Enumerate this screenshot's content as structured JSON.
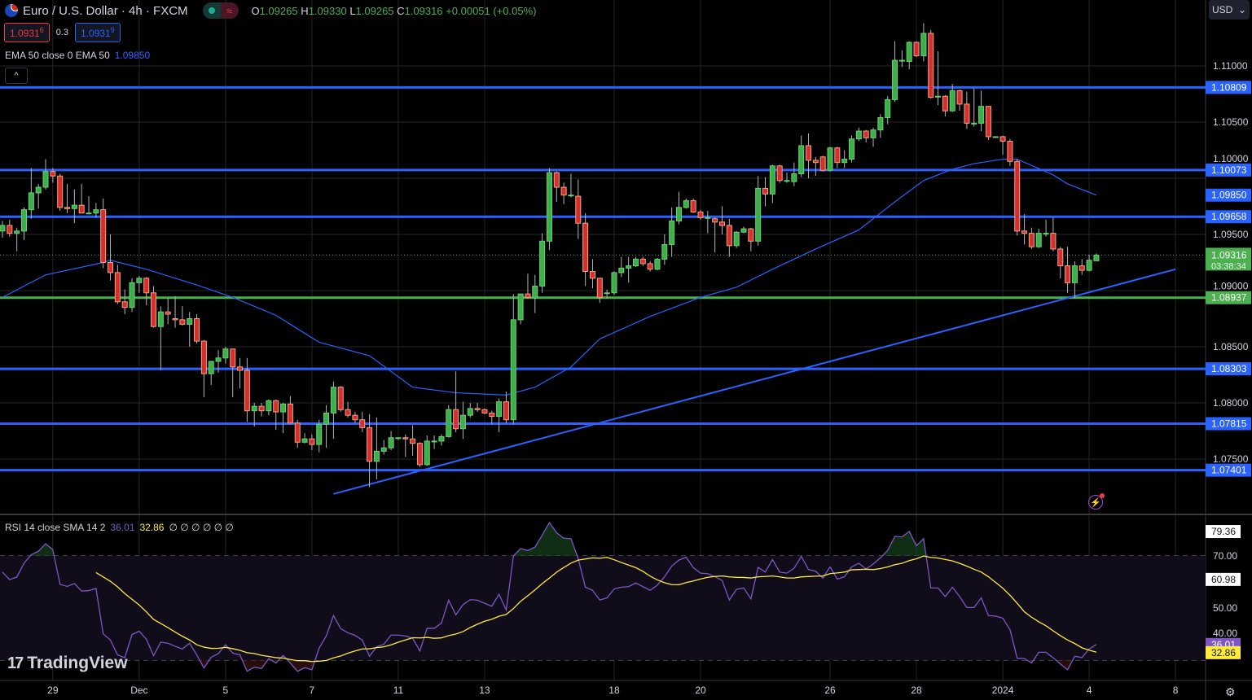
{
  "header": {
    "symbol_title": "Euro / U.S. Dollar · 4h · FXCM",
    "ohlc": {
      "o_label": "O",
      "o": "1.09265",
      "h_label": "H",
      "h": "1.09330",
      "l_label": "L",
      "l": "1.09265",
      "c_label": "C",
      "c": "1.09316",
      "change": "+0.00051 (+0.05%)"
    },
    "market_status_icon": "green-dot-icon",
    "delayed_icon": "approx-icon",
    "approx_symbol": "≈",
    "sell_price_main": "1.0931",
    "sell_price_pip": "6",
    "spread": "0.3",
    "buy_price_main": "1.0931",
    "buy_price_pip": "9",
    "collapse_symbol": "^"
  },
  "ema_legend": {
    "label": "EMA 50 close 0 EMA 50",
    "value": "1.09850"
  },
  "rsi_legend": {
    "label": "RSI 14 close SMA 14 2",
    "rsi": "36.01",
    "sma": "32.86",
    "empties": "∅ ∅ ∅ ∅ ∅ ∅"
  },
  "currency_button": {
    "label": "USD"
  },
  "watermark": "TradingView",
  "colors": {
    "up": "#4caf50",
    "down": "#d32f2f",
    "level": "#2962ff",
    "support": "#4caf50",
    "ema": "#2962ff",
    "rsi": "#7e57c2",
    "rsi_sma": "#ffeb3b"
  },
  "chart_data": {
    "type": "candlestick",
    "timeframe": "4h",
    "price_axis": {
      "ticks": [
        "1.11000",
        "1.10500",
        "1.10000",
        "1.09500",
        "1.09000",
        "1.08500",
        "1.08000",
        "1.07500"
      ]
    },
    "time_axis": [
      {
        "label": "29",
        "index": 7
      },
      {
        "label": "Dec",
        "index": 19
      },
      {
        "label": "5",
        "index": 31
      },
      {
        "label": "7",
        "index": 43
      },
      {
        "label": "11",
        "index": 55
      },
      {
        "label": "13",
        "index": 67
      },
      {
        "label": "18",
        "index": 85
      },
      {
        "label": "20",
        "index": 97
      },
      {
        "label": "26",
        "index": 115
      },
      {
        "label": "28",
        "index": 127
      },
      {
        "label": "2024",
        "index": 139
      },
      {
        "label": "4",
        "index": 151
      },
      {
        "label": "8",
        "index": 163
      }
    ],
    "candles": [
      [
        1.0953,
        1.0962,
        1.0947,
        1.0958
      ],
      [
        1.0958,
        1.0963,
        1.0948,
        1.0951
      ],
      [
        1.0951,
        1.0956,
        1.0935,
        1.0953
      ],
      [
        1.0953,
        1.0974,
        1.0945,
        1.0972
      ],
      [
        1.0972,
        1.1009,
        1.0964,
        1.0987
      ],
      [
        1.0987,
        1.0995,
        1.0973,
        1.0992
      ],
      [
        1.0992,
        1.1017,
        1.099,
        1.1006
      ],
      [
        1.1006,
        1.1009,
        1.0996,
        1.1002
      ],
      [
        1.1002,
        1.1004,
        1.0971,
        1.0974
      ],
      [
        1.0974,
        1.0995,
        1.0969,
        1.0973
      ],
      [
        1.0973,
        1.099,
        1.096,
        1.0976
      ],
      [
        1.0976,
        1.0995,
        1.0969,
        1.0969
      ],
      [
        1.0969,
        1.0984,
        1.0969,
        1.0969
      ],
      [
        1.0969,
        1.0978,
        1.0965,
        1.0972
      ],
      [
        1.0972,
        1.0982,
        1.092,
        1.0925
      ],
      [
        1.0925,
        1.095,
        1.0909,
        1.0916
      ],
      [
        1.0916,
        1.0923,
        1.0888,
        1.089
      ],
      [
        1.089,
        1.0901,
        1.0879,
        1.0885
      ],
      [
        1.0885,
        1.0911,
        1.0881,
        1.0907
      ],
      [
        1.0907,
        1.0913,
        1.0898,
        1.0911
      ],
      [
        1.0911,
        1.0912,
        1.0887,
        1.0898
      ],
      [
        1.0898,
        1.0904,
        1.0867,
        1.0868
      ],
      [
        1.0868,
        1.0886,
        1.0829,
        1.0881
      ],
      [
        1.0881,
        1.0893,
        1.087,
        1.0879
      ],
      [
        1.0875,
        1.0895,
        1.0867,
        1.0874
      ],
      [
        1.0874,
        1.0886,
        1.0869,
        1.087
      ],
      [
        1.087,
        1.0881,
        1.085,
        1.0875
      ],
      [
        1.0875,
        1.0879,
        1.0853,
        1.0855
      ],
      [
        1.0855,
        1.0856,
        1.0805,
        1.0826
      ],
      [
        1.0826,
        1.0837,
        1.0816,
        1.0837
      ],
      [
        1.0837,
        1.0847,
        1.0827,
        1.084
      ],
      [
        1.084,
        1.085,
        1.0835,
        1.0848
      ],
      [
        1.0848,
        1.0848,
        1.0805,
        1.0832
      ],
      [
        1.0832,
        1.084,
        1.0813,
        1.0829
      ],
      [
        1.0829,
        1.084,
        1.0783,
        1.0793
      ],
      [
        1.0793,
        1.08,
        1.0779,
        1.0797
      ],
      [
        1.0797,
        1.08,
        1.0788,
        1.0793
      ],
      [
        1.0793,
        1.0803,
        1.0789,
        1.0802
      ],
      [
        1.0802,
        1.0803,
        1.0776,
        1.0792
      ],
      [
        1.0792,
        1.08,
        1.0773,
        1.0799
      ],
      [
        1.0799,
        1.0806,
        1.0782,
        1.0782
      ],
      [
        1.0782,
        1.0785,
        1.076,
        1.0765
      ],
      [
        1.0765,
        1.0773,
        1.0764,
        1.0768
      ],
      [
        1.0768,
        1.0772,
        1.0758,
        1.0763
      ],
      [
        1.0763,
        1.0785,
        1.0756,
        1.0781
      ],
      [
        1.0781,
        1.0798,
        1.076,
        1.0791
      ],
      [
        1.0791,
        1.0819,
        1.0768,
        1.0814
      ],
      [
        1.0814,
        1.0815,
        1.0792,
        1.0794
      ],
      [
        1.0794,
        1.0801,
        1.0787,
        1.0789
      ],
      [
        1.0789,
        1.0792,
        1.0782,
        1.0785
      ],
      [
        1.0785,
        1.0792,
        1.0774,
        1.0778
      ],
      [
        1.0778,
        1.079,
        1.0725,
        1.0748
      ],
      [
        1.0748,
        1.0787,
        1.0732,
        1.0757
      ],
      [
        1.0757,
        1.0767,
        1.0754,
        1.076
      ],
      [
        1.076,
        1.0775,
        1.0758,
        1.0769
      ],
      [
        1.0769,
        1.0769,
        1.0767,
        1.0769
      ],
      [
        1.0769,
        1.0772,
        1.0752,
        1.0768
      ],
      [
        1.0768,
        1.078,
        1.0753,
        1.0764
      ],
      [
        1.0764,
        1.0765,
        1.0743,
        1.0745
      ],
      [
        1.0745,
        1.0771,
        1.0744,
        1.0766
      ],
      [
        1.0766,
        1.0771,
        1.0759,
        1.0766
      ],
      [
        1.0766,
        1.0772,
        1.0762,
        1.077
      ],
      [
        1.077,
        1.0798,
        1.0769,
        1.0794
      ],
      [
        1.0794,
        1.0828,
        1.0774,
        1.0777
      ],
      [
        1.0777,
        1.0801,
        1.0768,
        1.0789
      ],
      [
        1.0789,
        1.08,
        1.0787,
        1.0795
      ],
      [
        1.0795,
        1.08,
        1.0792,
        1.0794
      ],
      [
        1.0794,
        1.0795,
        1.079,
        1.0791
      ],
      [
        1.0791,
        1.0793,
        1.0781,
        1.0788
      ],
      [
        1.0788,
        1.0804,
        1.0774,
        1.0801
      ],
      [
        1.0801,
        1.081,
        1.0782,
        1.0785
      ],
      [
        1.0785,
        1.0897,
        1.0781,
        1.0874
      ],
      [
        1.0874,
        1.0897,
        1.087,
        1.0897
      ],
      [
        1.0897,
        1.0915,
        1.0893,
        1.0894
      ],
      [
        1.0894,
        1.0914,
        1.088,
        1.0904
      ],
      [
        1.0904,
        1.0951,
        1.0898,
        1.0944
      ],
      [
        1.0944,
        1.1009,
        1.0936,
        1.1005
      ],
      [
        1.1005,
        1.1006,
        1.0979,
        1.0992
      ],
      [
        1.0992,
        1.0996,
        1.0977,
        1.0985
      ],
      [
        1.0985,
        1.1004,
        1.0983,
        1.0985
      ],
      [
        1.0984,
        1.0999,
        1.0946,
        1.096
      ],
      [
        1.096,
        1.0969,
        1.0904,
        1.0917
      ],
      [
        1.0917,
        1.0928,
        1.0902,
        1.0911
      ],
      [
        1.0911,
        1.0911,
        1.0889,
        1.0894
      ],
      [
        1.0898,
        1.0901,
        1.0893,
        1.0898
      ],
      [
        1.0898,
        1.0917,
        1.0896,
        1.0916
      ],
      [
        1.0916,
        1.093,
        1.0912,
        1.092
      ],
      [
        1.092,
        1.093,
        1.0907,
        1.0922
      ],
      [
        1.0922,
        1.093,
        1.0921,
        1.0928
      ],
      [
        1.0928,
        1.093,
        1.0922,
        1.0924
      ],
      [
        1.0924,
        1.0926,
        1.0917,
        1.0919
      ],
      [
        1.0919,
        1.0929,
        1.0918,
        1.0928
      ],
      [
        1.0928,
        1.095,
        1.0923,
        1.0941
      ],
      [
        1.0941,
        1.0974,
        1.093,
        1.0962
      ],
      [
        1.0962,
        1.0988,
        1.0959,
        1.0974
      ],
      [
        1.0974,
        1.0982,
        1.0973,
        1.098
      ],
      [
        1.098,
        1.0982,
        1.0969,
        1.097
      ],
      [
        1.097,
        1.0972,
        1.0963,
        1.0965
      ],
      [
        1.0965,
        1.0971,
        1.0951,
        1.0965
      ],
      [
        1.0964,
        1.0965,
        1.0934,
        1.0961
      ],
      [
        1.0961,
        1.0975,
        1.095,
        1.0958
      ],
      [
        1.0958,
        1.0964,
        1.093,
        1.094
      ],
      [
        1.094,
        1.0953,
        1.0938,
        1.0952
      ],
      [
        1.0952,
        1.0957,
        1.0951,
        1.0955
      ],
      [
        1.0955,
        1.0956,
        1.0935,
        1.0944
      ],
      [
        1.0944,
        1.1002,
        1.094,
        1.0991
      ],
      [
        1.0991,
        1.1001,
        1.0975,
        1.0986
      ],
      [
        1.0986,
        1.1012,
        1.0978,
        1.1011
      ],
      [
        1.1011,
        1.1012,
        1.0996,
        1.0998
      ],
      [
        1.0998,
        1.1005,
        1.0996,
        1.0998
      ],
      [
        1.0997,
        1.1014,
        1.0993,
        1.1004
      ],
      [
        1.1004,
        1.1038,
        1.1001,
        1.1029
      ],
      [
        1.1029,
        1.104,
        1.1,
        1.1016
      ],
      [
        1.1016,
        1.1019,
        1.1002,
        1.1014
      ],
      [
        1.1019,
        1.102,
        1.1006,
        1.1007
      ],
      [
        1.1007,
        1.1028,
        1.1006,
        1.1027
      ],
      [
        1.1027,
        1.1028,
        1.1009,
        1.1014
      ],
      [
        1.1014,
        1.1025,
        1.1009,
        1.1017
      ],
      [
        1.1017,
        1.1038,
        1.1014,
        1.1035
      ],
      [
        1.1035,
        1.1045,
        1.1033,
        1.1042
      ],
      [
        1.1042,
        1.1043,
        1.1032,
        1.1036
      ],
      [
        1.1036,
        1.1045,
        1.1028,
        1.1043
      ],
      [
        1.1043,
        1.1057,
        1.1036,
        1.1054
      ],
      [
        1.1054,
        1.1073,
        1.1048,
        1.107
      ],
      [
        1.107,
        1.1122,
        1.1068,
        1.1105
      ],
      [
        1.1105,
        1.1114,
        1.1099,
        1.1105
      ],
      [
        1.1104,
        1.1122,
        1.1097,
        1.1121
      ],
      [
        1.1121,
        1.1122,
        1.1108,
        1.1109
      ],
      [
        1.1109,
        1.1138,
        1.1104,
        1.1129
      ],
      [
        1.1129,
        1.1132,
        1.1071,
        1.1072
      ],
      [
        1.1073,
        1.1113,
        1.1065,
        1.1073
      ],
      [
        1.1073,
        1.1074,
        1.1055,
        1.106
      ],
      [
        1.106,
        1.1084,
        1.1059,
        1.1078
      ],
      [
        1.1078,
        1.1079,
        1.106,
        1.1066
      ],
      [
        1.1066,
        1.1077,
        1.1044,
        1.1049
      ],
      [
        1.1049,
        1.108,
        1.1046,
        1.1049
      ],
      [
        1.1049,
        1.1078,
        1.1042,
        1.1064
      ],
      [
        1.1064,
        1.1064,
        1.1034,
        1.1037
      ],
      [
        1.1037,
        1.1037,
        1.1037,
        1.1037
      ],
      [
        1.1037,
        1.1038,
        1.1021,
        1.1033
      ],
      [
        1.1033,
        1.1035,
        1.1011,
        1.1015
      ],
      [
        1.1015,
        1.1017,
        1.0949,
        1.0953
      ],
      [
        1.0953,
        1.0968,
        1.0941,
        1.0951
      ],
      [
        1.0951,
        1.0956,
        1.0937,
        1.0939
      ],
      [
        1.0939,
        1.0955,
        1.0938,
        1.0951
      ],
      [
        1.0951,
        1.0963,
        1.0948,
        1.0951
      ],
      [
        1.0951,
        1.0965,
        1.0935,
        1.0937
      ],
      [
        1.0937,
        1.0939,
        1.0911,
        1.0922
      ],
      [
        1.0922,
        1.0939,
        1.0898,
        1.0907
      ],
      [
        1.0907,
        1.0926,
        1.0893,
        1.0922
      ],
      [
        1.0922,
        1.0928,
        1.0914,
        1.0918
      ],
      [
        1.0918,
        1.0932,
        1.0917,
        1.0927
      ],
      [
        1.09265,
        1.0933,
        1.09265,
        1.09316
      ]
    ],
    "ema50": [
      [
        0,
        1.0894
      ],
      [
        6,
        1.0914
      ],
      [
        14,
        1.0925
      ],
      [
        15,
        1.0927
      ],
      [
        20,
        1.0919
      ],
      [
        27,
        1.0905
      ],
      [
        32,
        1.0894
      ],
      [
        38,
        1.0878
      ],
      [
        44,
        1.0854
      ],
      [
        51,
        1.0842
      ],
      [
        57,
        1.0814
      ],
      [
        63,
        1.0809
      ],
      [
        70,
        1.0807
      ],
      [
        74,
        1.0814
      ],
      [
        79,
        1.0832
      ],
      [
        83,
        1.0857
      ],
      [
        90,
        1.0877
      ],
      [
        97,
        1.0894
      ],
      [
        102,
        1.0903
      ],
      [
        107,
        1.0919
      ],
      [
        113,
        1.0937
      ],
      [
        119,
        1.0954
      ],
      [
        124,
        1.0979
      ],
      [
        128,
        1.0998
      ],
      [
        132,
        1.1008
      ],
      [
        135,
        1.1013
      ],
      [
        139,
        1.1017
      ],
      [
        141,
        1.1017
      ],
      [
        146,
        1.1003
      ],
      [
        148,
        1.0995
      ],
      [
        152,
        1.0985
      ]
    ],
    "levels": [
      {
        "price": 1.10809,
        "label": "1.10809",
        "kind": "resistance"
      },
      {
        "price": 1.10073,
        "label": "1.10073",
        "kind": "resistance"
      },
      {
        "price": 1.09658,
        "label": "1.09658",
        "kind": "resistance"
      },
      {
        "price": 1.08937,
        "label": "1.08937",
        "kind": "support"
      },
      {
        "price": 1.08303,
        "label": "1.08303",
        "kind": "resistance"
      },
      {
        "price": 1.07815,
        "label": "1.07815",
        "kind": "resistance"
      },
      {
        "price": 1.07401,
        "label": "1.07401",
        "kind": "resistance"
      }
    ],
    "ema_tag": {
      "price": 1.0985,
      "label": "1.09850"
    },
    "last_price": {
      "price": 1.09316,
      "label": "1.09316",
      "countdown": "03:38:34"
    },
    "trendline": {
      "from": [
        46,
        1.0719
      ],
      "to": [
        163,
        1.0919
      ]
    },
    "rsi": {
      "ticks": [
        "70.00",
        "50.00",
        "40.00"
      ],
      "bands": {
        "upper": 70,
        "middle": 50,
        "lower": 30
      },
      "values": [
        63.8,
        60.9,
        61.9,
        67.2,
        70.5,
        71.8,
        74.7,
        72.4,
        59.1,
        58.3,
        59.4,
        56.5,
        56.7,
        57.5,
        40.1,
        37.7,
        32.0,
        30.9,
        39.8,
        41.1,
        38.0,
        31.7,
        36.9,
        36.5,
        35.3,
        34.3,
        36.5,
        32.0,
        27.0,
        31.1,
        32.5,
        35.9,
        32.7,
        32.0,
        25.7,
        27.3,
        26.8,
        30.6,
        28.9,
        31.8,
        28.9,
        25.7,
        27.1,
        26.3,
        34.6,
        39.3,
        47.1,
        42.1,
        40.5,
        39.5,
        37.7,
        31.5,
        35.1,
        36.1,
        39.6,
        39.6,
        39.3,
        38.4,
        33.5,
        42.2,
        42.2,
        44.2,
        53.0,
        47.4,
        51.3,
        53.2,
        53.0,
        51.8,
        50.7,
        55.3,
        49.2,
        70.0,
        72.8,
        72.1,
        73.4,
        78.0,
        82.8,
        78.9,
        76.8,
        76.6,
        69.0,
        58.0,
        56.8,
        53.1,
        53.9,
        57.3,
        58.0,
        58.2,
        59.6,
        58.2,
        56.8,
        58.8,
        62.0,
        66.1,
        68.4,
        69.5,
        65.5,
        63.4,
        63.2,
        62.0,
        60.6,
        53.1,
        57.2,
        57.7,
        53.5,
        65.6,
        63.8,
        68.6,
        63.8,
        63.4,
        65.3,
        69.8,
        64.8,
        64.1,
        61.5,
        65.8,
        61.1,
        62.0,
        65.8,
        67.2,
        65.0,
        66.9,
        69.3,
        72.1,
        77.5,
        77.3,
        79.4,
        73.9,
        76.6,
        57.7,
        57.7,
        54.4,
        58.0,
        54.4,
        50.2,
        50.2,
        53.9,
        47.1,
        46.9,
        46.1,
        41.7,
        30.7,
        30.6,
        28.9,
        33.0,
        33.0,
        30.9,
        28.5,
        26.3,
        31.5,
        31.0,
        34.3,
        36.01
      ],
      "sma_length": 14,
      "tags": [
        {
          "value": 79.36,
          "label": "79.36",
          "style": "white"
        },
        {
          "value": 60.98,
          "label": "60.98",
          "style": "white"
        },
        {
          "value": 36.01,
          "label": "36.01",
          "style": "rsi"
        },
        {
          "value": 32.86,
          "label": "32.86",
          "style": "sma"
        }
      ]
    }
  }
}
